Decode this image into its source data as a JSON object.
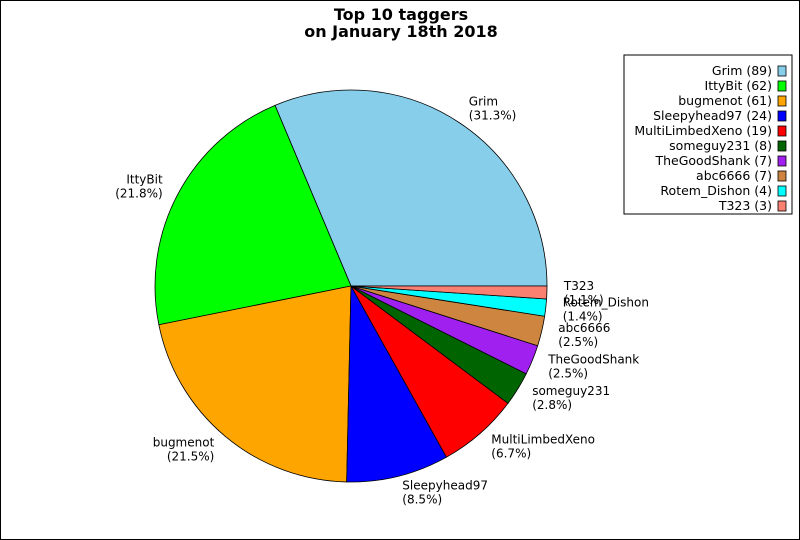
{
  "chart_data": {
    "type": "pie",
    "title_lines": [
      "Top 10 taggers",
      "on January 18th 2018"
    ],
    "slices": [
      {
        "name": "Grim",
        "count": 89,
        "percent": "31.3%",
        "color": "#87ceeb"
      },
      {
        "name": "IttyBit",
        "count": 62,
        "percent": "21.8%",
        "color": "#00ff00"
      },
      {
        "name": "bugmenot",
        "count": 61,
        "percent": "21.5%",
        "color": "#ffa500"
      },
      {
        "name": "Sleepyhead97",
        "count": 24,
        "percent": "8.5%",
        "color": "#0000ff"
      },
      {
        "name": "MultiLimbedXeno",
        "count": 19,
        "percent": "6.7%",
        "color": "#ff0000"
      },
      {
        "name": "someguy231",
        "count": 8,
        "percent": "2.8%",
        "color": "#006400"
      },
      {
        "name": "TheGoodShank",
        "count": 7,
        "percent": "2.5%",
        "color": "#a020f0"
      },
      {
        "name": "abc6666",
        "count": 7,
        "percent": "2.5%",
        "color": "#cd853f"
      },
      {
        "name": "Rotem_Dishon",
        "count": 4,
        "percent": "1.4%",
        "color": "#00ffff"
      },
      {
        "name": "T323",
        "count": 3,
        "percent": "1.1%",
        "color": "#fa8072"
      }
    ],
    "legend_entries": [
      "Grim (89)",
      "IttyBit (62)",
      "bugmenot (61)",
      "Sleepyhead97 (24)",
      "MultiLimbedXeno (19)",
      "someguy231 (8)",
      "TheGoodShank (7)",
      "abc6666 (7)",
      "Rotem_Dishon (4)",
      "T323 (3)"
    ],
    "start_angle_deg": 0,
    "direction": "counterclockwise",
    "legend_position": "top-right"
  }
}
